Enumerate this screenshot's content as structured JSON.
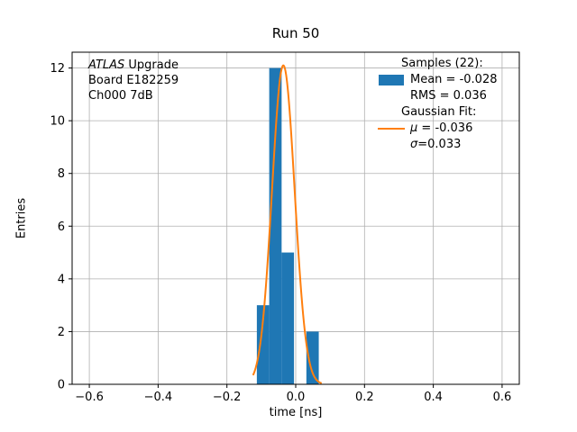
{
  "chart_data": {
    "type": "bar",
    "subtype": "histogram-with-gaussian-fit",
    "title": "Run 50",
    "xlabel": "time [ns]",
    "ylabel": "Entries",
    "xlim": [
      -0.65,
      0.65
    ],
    "ylim": [
      0,
      12.6
    ],
    "grid": true,
    "grid_color": "#b0b0b0",
    "xticks": [
      {
        "v": -0.6,
        "label": "−0.6"
      },
      {
        "v": -0.4,
        "label": "−0.4"
      },
      {
        "v": -0.2,
        "label": "−0.2"
      },
      {
        "v": 0.0,
        "label": "0.0"
      },
      {
        "v": 0.2,
        "label": "0.2"
      },
      {
        "v": 0.4,
        "label": "0.4"
      },
      {
        "v": 0.6,
        "label": "0.6"
      }
    ],
    "yticks": [
      {
        "v": 0,
        "label": "0"
      },
      {
        "v": 2,
        "label": "2"
      },
      {
        "v": 4,
        "label": "4"
      },
      {
        "v": 6,
        "label": "6"
      },
      {
        "v": 8,
        "label": "8"
      },
      {
        "v": 10,
        "label": "10"
      },
      {
        "v": 12,
        "label": "12"
      }
    ],
    "hist": {
      "bin_edges": [
        -0.113,
        -0.077,
        -0.041,
        -0.005,
        0.031,
        0.067
      ],
      "counts": [
        3,
        12,
        5,
        0,
        2
      ],
      "total_samples": 22,
      "color": "#1f77b4"
    },
    "fit": {
      "type": "gaussian",
      "amplitude": 12.1,
      "mu": -0.036,
      "sigma": 0.033,
      "x_range": [
        -0.124,
        0.076
      ],
      "color": "#ff7f0e"
    }
  },
  "annotation": {
    "line1_italic": "ATLAS",
    "line1_rest": " Upgrade",
    "line2": "Board E182259",
    "line3": "Ch000 7dB"
  },
  "legend": {
    "header_samples": "Samples (22):",
    "mean": "Mean = -0.028",
    "rms": "RMS = 0.036",
    "header_fit": "Gaussian Fit:",
    "mu_symbol": "μ",
    "mu_value": " = -0.036",
    "sigma_symbol": "σ",
    "sigma_value": "=0.033"
  },
  "colors": {
    "histogram": "#1f77b4",
    "fit_line": "#ff7f0e",
    "background": "#ffffff"
  }
}
